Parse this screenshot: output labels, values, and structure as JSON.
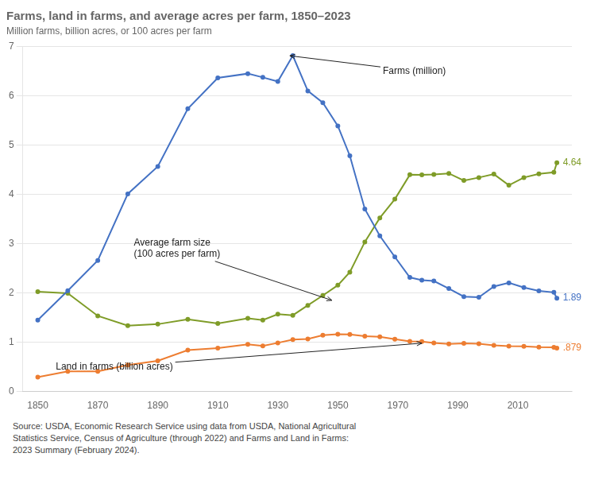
{
  "chart_data": {
    "type": "line",
    "title": "Farms, land in farms, and average acres per farm, 1850–2023",
    "subtitle": "Million farms, billion acres, or 100 acres per farm",
    "source": [
      "Source: USDA, Economic Research Service using data from USDA, National Agricultural",
      "Statistics Service, Census of Agriculture (through 2022) and Farms and Land in Farms:",
      "2023 Summary (February 2024)."
    ],
    "x": [
      1850,
      1860,
      1870,
      1880,
      1890,
      1900,
      1910,
      1920,
      1925,
      1930,
      1935,
      1940,
      1945,
      1950,
      1954,
      1959,
      1964,
      1969,
      1974,
      1978,
      1982,
      1987,
      1992,
      1997,
      2002,
      2007,
      2012,
      2017,
      2022,
      2023
    ],
    "series": [
      {
        "name": "Farms (million)",
        "color": "#4472C4",
        "marker": "circle",
        "values": [
          1.449,
          2.044,
          2.659,
          4.009,
          4.565,
          5.737,
          6.362,
          6.448,
          6.372,
          6.289,
          6.812,
          6.097,
          5.859,
          5.388,
          4.782,
          3.703,
          3.157,
          2.73,
          2.314,
          2.258,
          2.241,
          2.088,
          1.925,
          1.912,
          2.129,
          2.204,
          2.109,
          2.042,
          2.011,
          1.893
        ]
      },
      {
        "name": "Land in farms (billion acres)",
        "color": "#ED7D31",
        "marker": "circle",
        "values": [
          0.293,
          0.407,
          0.408,
          0.536,
          0.623,
          0.839,
          0.879,
          0.956,
          0.924,
          0.987,
          1.054,
          1.065,
          1.141,
          1.161,
          1.158,
          1.124,
          1.11,
          1.063,
          1.017,
          1.015,
          0.986,
          0.964,
          0.978,
          0.969,
          0.938,
          0.922,
          0.915,
          0.9,
          0.895,
          0.879
        ]
      },
      {
        "name": "Average farm size\n(100 acres per farm)",
        "color": "#7F9C28",
        "marker": "circle",
        "values": [
          2.025,
          1.994,
          1.534,
          1.337,
          1.366,
          1.464,
          1.381,
          1.484,
          1.45,
          1.57,
          1.547,
          1.748,
          1.948,
          2.156,
          2.421,
          3.034,
          3.521,
          3.902,
          4.397,
          4.396,
          4.402,
          4.424,
          4.28,
          4.34,
          4.409,
          4.184,
          4.34,
          4.416,
          4.446,
          4.64
        ]
      }
    ],
    "annotations": [
      {
        "text": "1.89",
        "x": 2025,
        "y": 1.893,
        "color": "#4472C4"
      },
      {
        "text": ".879",
        "x": 2025,
        "y": 0.879,
        "color": "#ED7D31"
      },
      {
        "text": "4.64",
        "x": 2025,
        "y": 4.64,
        "color": "#7F9C28"
      },
      {
        "text": "Farms (million)",
        "x": 1965,
        "y": 6.5,
        "arrow_to": [
          1934,
          6.81
        ]
      },
      {
        "text": "Average farm size\n(100 acres per farm)",
        "x": 1882,
        "y": 2.9,
        "arrow_to": [
          1948,
          1.85
        ]
      },
      {
        "text": "Land in farms (billion acres)",
        "x": 1856,
        "y": 0.5,
        "arrow_to": [
          1978,
          0.98
        ]
      }
    ],
    "xlim": [
      1845,
      2028
    ],
    "xticks": [
      1850,
      1870,
      1890,
      1910,
      1930,
      1950,
      1970,
      1990,
      2010
    ],
    "ylim": [
      0,
      7
    ],
    "yticks": [
      0,
      1,
      2,
      3,
      4,
      5,
      6,
      7
    ],
    "grid": "y"
  }
}
